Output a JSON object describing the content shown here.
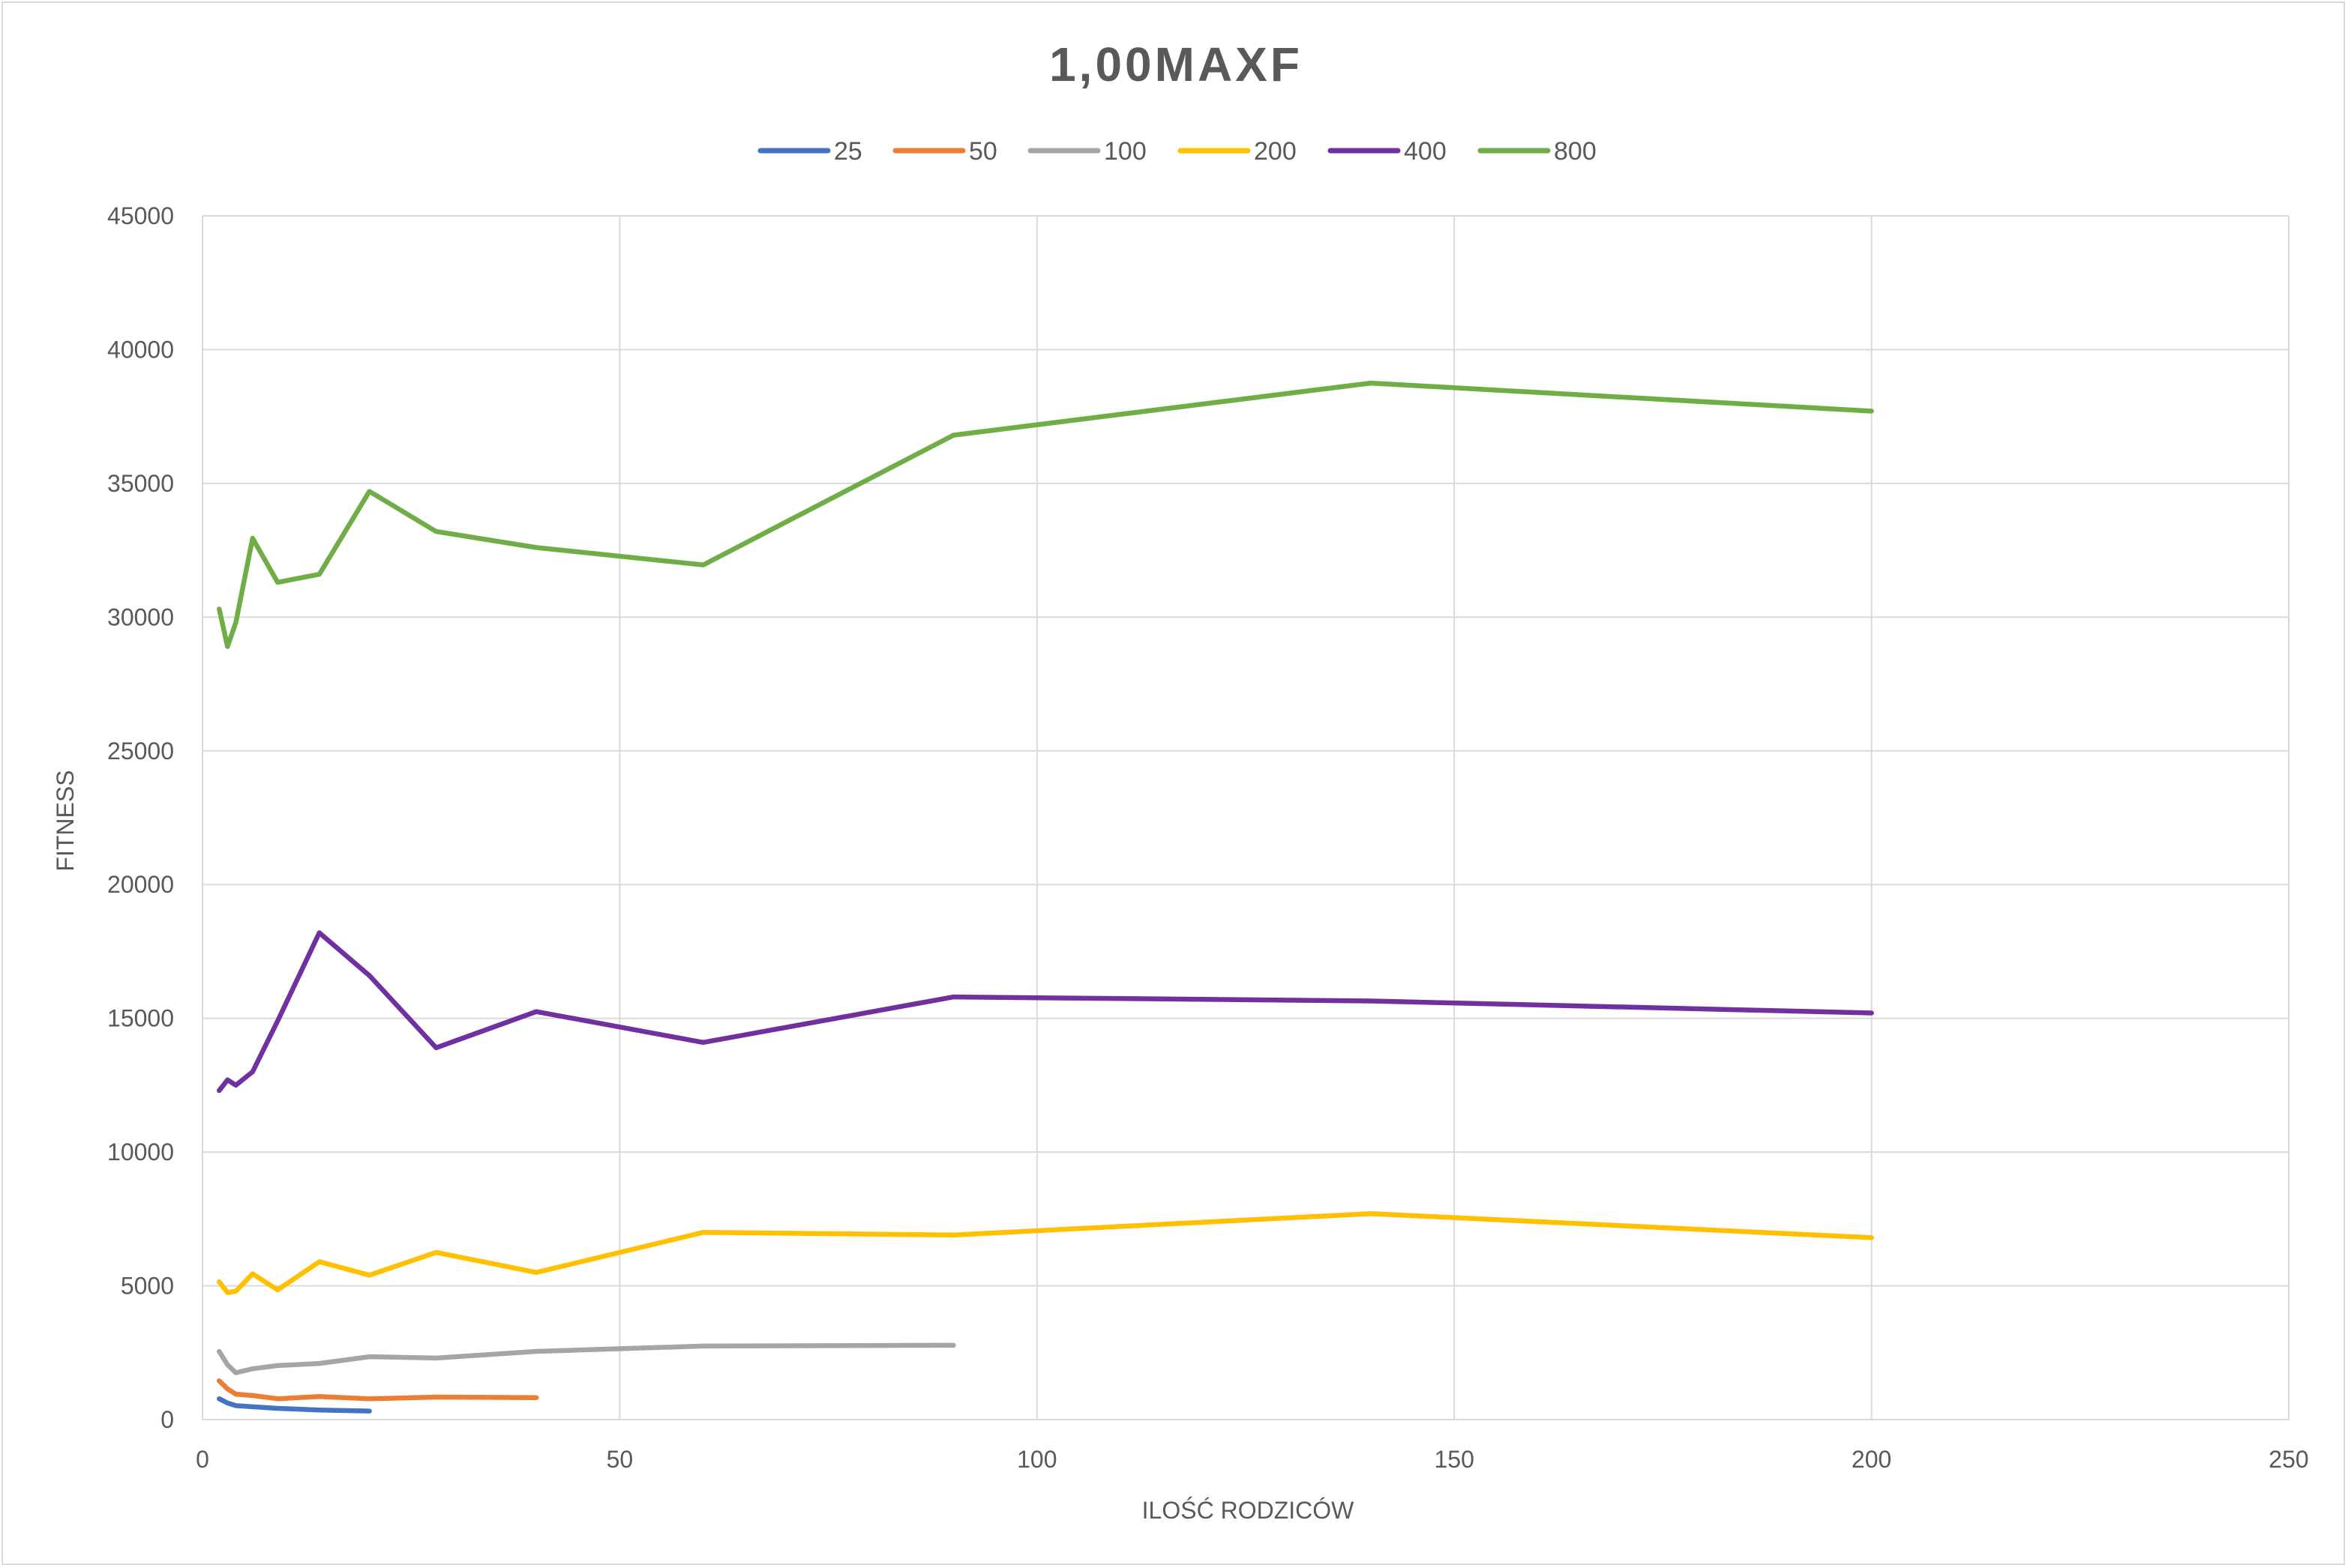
{
  "chart_data": {
    "type": "line",
    "title": "1,00MAXF",
    "xlabel": "ILOŚĆ RODZICÓW",
    "ylabel": "FITNESS",
    "xlim": [
      0,
      250
    ],
    "ylim": [
      0,
      45000
    ],
    "x_ticks": [
      "0",
      "50",
      "100",
      "150",
      "200",
      "250"
    ],
    "y_ticks": [
      "0",
      "5000",
      "10000",
      "15000",
      "20000",
      "25000",
      "30000",
      "35000",
      "40000",
      "45000"
    ],
    "grid": true,
    "legend_position": "top",
    "series": [
      {
        "name": "25",
        "color": "#4472c4",
        "points": [
          [
            2,
            780
          ],
          [
            3,
            620
          ],
          [
            4,
            520
          ],
          [
            6,
            480
          ],
          [
            9,
            420
          ],
          [
            14,
            360
          ],
          [
            20,
            320
          ]
        ]
      },
      {
        "name": "50",
        "color": "#ed7d31",
        "points": [
          [
            2,
            1450
          ],
          [
            3,
            1150
          ],
          [
            4,
            950
          ],
          [
            6,
            900
          ],
          [
            9,
            780
          ],
          [
            14,
            860
          ],
          [
            20,
            780
          ],
          [
            28,
            840
          ],
          [
            40,
            820
          ]
        ]
      },
      {
        "name": "100",
        "color": "#a5a5a5",
        "points": [
          [
            2,
            2550
          ],
          [
            3,
            2050
          ],
          [
            4,
            1750
          ],
          [
            6,
            1900
          ],
          [
            9,
            2020
          ],
          [
            14,
            2100
          ],
          [
            20,
            2350
          ],
          [
            28,
            2300
          ],
          [
            40,
            2550
          ],
          [
            60,
            2750
          ],
          [
            90,
            2780
          ]
        ]
      },
      {
        "name": "200",
        "color": "#ffc000",
        "points": [
          [
            2,
            5150
          ],
          [
            3,
            4750
          ],
          [
            4,
            4800
          ],
          [
            6,
            5450
          ],
          [
            9,
            4850
          ],
          [
            14,
            5900
          ],
          [
            20,
            5400
          ],
          [
            28,
            6250
          ],
          [
            40,
            5500
          ],
          [
            60,
            7000
          ],
          [
            90,
            6900
          ],
          [
            140,
            7700
          ],
          [
            200,
            6800
          ]
        ]
      },
      {
        "name": "400",
        "color": "#7030a0",
        "points": [
          [
            2,
            12300
          ],
          [
            3,
            12700
          ],
          [
            4,
            12500
          ],
          [
            6,
            13000
          ],
          [
            9,
            14900
          ],
          [
            14,
            18200
          ],
          [
            20,
            16600
          ],
          [
            28,
            13900
          ],
          [
            40,
            15250
          ],
          [
            60,
            14100
          ],
          [
            90,
            15800
          ],
          [
            140,
            15650
          ],
          [
            200,
            15200
          ]
        ]
      },
      {
        "name": "800",
        "color": "#70ad47",
        "points": [
          [
            2,
            30300
          ],
          [
            3,
            28900
          ],
          [
            4,
            29800
          ],
          [
            6,
            32950
          ],
          [
            9,
            31300
          ],
          [
            14,
            31600
          ],
          [
            20,
            34700
          ],
          [
            28,
            33200
          ],
          [
            40,
            32600
          ],
          [
            60,
            31950
          ],
          [
            90,
            36800
          ],
          [
            140,
            38750
          ],
          [
            200,
            37700
          ]
        ]
      }
    ]
  }
}
